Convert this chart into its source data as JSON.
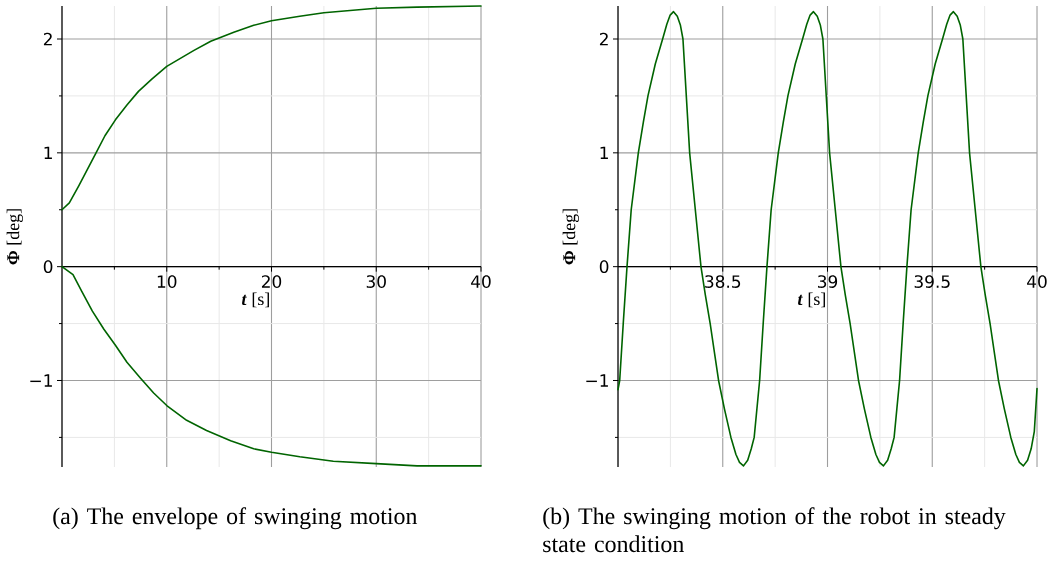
{
  "chart_data": [
    {
      "type": "line",
      "xlabel": "*t* [s]",
      "ylabel": "**Φ** [deg]",
      "xlim": [
        0,
        40
      ],
      "ylim": [
        -1.76,
        2.29
      ],
      "xticks": [
        {
          "value": 5,
          "label": null
        },
        10,
        {
          "value": 15,
          "label": null
        },
        20,
        {
          "value": 25,
          "label": null
        },
        30,
        {
          "value": 35,
          "label": null
        },
        40
      ],
      "yticks": [
        {
          "value": -1.5,
          "label": null
        },
        {
          "value": -1,
          "label": "−1"
        },
        {
          "value": -0.5,
          "label": null
        },
        0,
        {
          "value": 0.5,
          "label": null
        },
        1,
        {
          "value": 1.5,
          "label": null
        },
        2
      ],
      "grid": true,
      "marker": "none",
      "series": [
        {
          "color": "#006400",
          "x": [
            0,
            0.7,
            1.6,
            2.4,
            3.2,
            4.1,
            5.1,
            6.2,
            7.3,
            8.6,
            10,
            11.3,
            12.6,
            14.2,
            16.4,
            18.3,
            20,
            22.7,
            25,
            27.5,
            30,
            33.9,
            40
          ],
          "values": [
            0.5,
            0.56,
            0.71,
            0.85,
            0.99,
            1.15,
            1.29,
            1.42,
            1.54,
            1.65,
            1.76,
            1.83,
            1.9,
            1.98,
            2.06,
            2.12,
            2.16,
            2.2,
            2.23,
            2.25,
            2.27,
            2.28,
            2.29
          ]
        },
        {
          "color": "#006400",
          "x": [
            0,
            1.05,
            1.9,
            2.9,
            4,
            5.1,
            6.2,
            7.5,
            8.75,
            10,
            11.9,
            13.8,
            16.1,
            18.3,
            20,
            22.7,
            25.9,
            30,
            33.9,
            40
          ],
          "values": [
            0,
            -0.07,
            -0.22,
            -0.39,
            -0.55,
            -0.69,
            -0.84,
            -0.98,
            -1.11,
            -1.22,
            -1.35,
            -1.44,
            -1.53,
            -1.6,
            -1.63,
            -1.67,
            -1.71,
            -1.73,
            -1.75,
            -1.75
          ]
        }
      ],
      "annotations": [
        "(a) The envelope of swinging motion"
      ]
    },
    {
      "type": "line",
      "xlabel": "*t* [s]",
      "ylabel": "**Φ** [deg]",
      "xlim": [
        38,
        40
      ],
      "ylim": [
        -1.76,
        2.29
      ],
      "xticks": [
        {
          "value": 38.25,
          "label": null
        },
        38.5,
        {
          "value": 38.75,
          "label": null
        },
        39,
        {
          "value": 39.25,
          "label": null
        },
        39.5,
        {
          "value": 39.75,
          "label": null
        },
        40
      ],
      "yticks": [
        {
          "value": -1.5,
          "label": null
        },
        {
          "value": -1,
          "label": "−1"
        },
        {
          "value": -0.5,
          "label": null
        },
        0,
        {
          "value": 0.5,
          "label": null
        },
        1,
        {
          "value": 1.5,
          "label": null
        },
        2
      ],
      "grid": true,
      "marker": "none",
      "series": [
        {
          "color": "#006400",
          "x": [
            38.0,
            38.008,
            38.025,
            38.043,
            38.063,
            38.097,
            38.121,
            38.143,
            38.178,
            38.213,
            38.233,
            38.249,
            38.265,
            38.283,
            38.298,
            38.31,
            38.326,
            38.342,
            38.369,
            38.396,
            38.417,
            38.44,
            38.46,
            38.48,
            38.508,
            38.539,
            38.563,
            38.58,
            38.599,
            38.619,
            38.636,
            38.65,
            38.663,
            38.676,
            38.693,
            38.711,
            38.731,
            38.765,
            38.789,
            38.811,
            38.846,
            38.881,
            38.901,
            38.917,
            38.933,
            38.951,
            38.966,
            38.978,
            38.994,
            39.01,
            39.037,
            39.064,
            39.085,
            39.108,
            39.128,
            39.148,
            39.176,
            39.207,
            39.231,
            39.248,
            39.267,
            39.287,
            39.304,
            39.318,
            39.331,
            39.344,
            39.361,
            39.379,
            39.399,
            39.433,
            39.457,
            39.479,
            39.514,
            39.549,
            39.569,
            39.585,
            39.601,
            39.619,
            39.634,
            39.646,
            39.662,
            39.678,
            39.705,
            39.732,
            39.753,
            39.776,
            39.796,
            39.816,
            39.844,
            39.875,
            39.899,
            39.916,
            39.935,
            39.955,
            39.972,
            39.987,
            40.0
          ],
          "values": [
            -1.08,
            -1.0,
            -0.5,
            0,
            0.5,
            1.0,
            1.27,
            1.5,
            1.78,
            2.0,
            2.13,
            2.21,
            2.24,
            2.2,
            2.12,
            2.0,
            1.5,
            1.0,
            0.5,
            0,
            -0.25,
            -0.5,
            -0.75,
            -1.0,
            -1.25,
            -1.5,
            -1.65,
            -1.72,
            -1.75,
            -1.7,
            -1.6,
            -1.5,
            -1.25,
            -1.0,
            -0.5,
            0,
            0.5,
            1.0,
            1.27,
            1.5,
            1.78,
            2.0,
            2.13,
            2.21,
            2.24,
            2.2,
            2.12,
            2.0,
            1.5,
            1.0,
            0.5,
            0,
            -0.25,
            -0.5,
            -0.75,
            -1.0,
            -1.25,
            -1.5,
            -1.65,
            -1.72,
            -1.75,
            -1.7,
            -1.6,
            -1.5,
            -1.25,
            -1.0,
            -0.5,
            0,
            0.5,
            1.0,
            1.27,
            1.5,
            1.78,
            2.0,
            2.13,
            2.21,
            2.24,
            2.2,
            2.12,
            2.0,
            1.5,
            1.0,
            0.5,
            0,
            -0.25,
            -0.5,
            -0.75,
            -1.0,
            -1.25,
            -1.5,
            -1.65,
            -1.72,
            -1.75,
            -1.7,
            -1.6,
            -1.45,
            -1.07
          ]
        }
      ],
      "annotations": [
        "(b) The swinging motion of the robot in steady state condition"
      ]
    }
  ]
}
